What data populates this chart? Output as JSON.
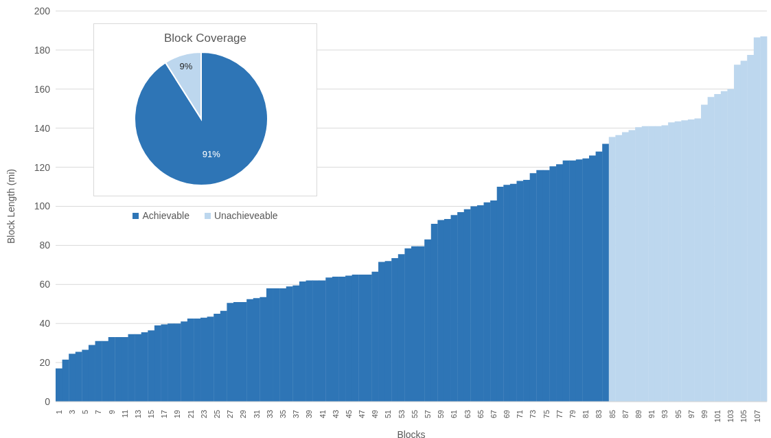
{
  "chart_data": [
    {
      "type": "bar",
      "xlabel": "Blocks",
      "ylabel": "Block Length (mi)",
      "categories": [
        "1",
        null,
        "3",
        null,
        "5",
        null,
        "7",
        null,
        "9",
        null,
        "11",
        null,
        "13",
        null,
        "15",
        null,
        "17",
        null,
        "19",
        null,
        "21",
        null,
        "23",
        null,
        "25",
        null,
        "27",
        null,
        "29",
        null,
        "31",
        null,
        "33",
        null,
        "35",
        null,
        "37",
        null,
        "39",
        null,
        "41",
        null,
        "43",
        null,
        "45",
        null,
        "47",
        null,
        "49",
        null,
        "51",
        null,
        "53",
        null,
        "55",
        null,
        "57",
        null,
        "59",
        null,
        "61",
        null,
        "63",
        null,
        "65",
        null,
        "67",
        null,
        "69",
        null,
        "71",
        null,
        "73",
        null,
        "75",
        null,
        "77",
        null,
        "79",
        null,
        "81",
        null,
        "83",
        null,
        "85",
        null,
        "87",
        null,
        "89",
        null,
        "91",
        null,
        "93",
        null,
        "95",
        null,
        "97",
        null,
        "99",
        null,
        "101",
        null,
        "103",
        null,
        "105",
        null,
        "107",
        null
      ],
      "values": [
        17,
        21.5,
        24.5,
        25.5,
        26.5,
        29,
        31,
        31,
        33,
        33,
        33,
        34.5,
        34.5,
        35.5,
        36.5,
        39,
        39.5,
        40,
        40,
        41,
        42.5,
        42.5,
        43,
        43.5,
        45,
        46.5,
        50.5,
        51,
        51,
        52.5,
        53,
        53.5,
        58,
        58,
        58,
        59,
        59.5,
        61.5,
        62,
        62,
        62,
        63.5,
        64,
        64,
        64.5,
        65,
        65,
        65,
        66.5,
        71.5,
        72,
        73.5,
        75.5,
        78.5,
        79.5,
        79.5,
        83,
        91,
        93,
        93.5,
        95.5,
        97,
        98.5,
        100,
        100.5,
        102,
        103,
        110,
        111,
        111.5,
        113,
        113.5,
        117,
        118.5,
        118.5,
        120.5,
        121.5,
        123.5,
        123.5,
        124,
        124.5,
        126,
        128,
        132,
        135.5,
        136.5,
        138,
        139,
        140.5,
        141,
        141,
        141,
        141.5,
        143,
        143.5,
        144,
        144.5,
        145,
        152,
        156,
        157.5,
        159,
        160,
        172.5,
        174.5,
        177.5,
        186.5,
        187
      ],
      "colors": [
        "#2e75b6",
        "#2e75b6",
        "#2e75b6",
        "#2e75b6",
        "#2e75b6",
        "#2e75b6",
        "#2e75b6",
        "#2e75b6",
        "#2e75b6",
        "#2e75b6",
        "#2e75b6",
        "#2e75b6",
        "#2e75b6",
        "#2e75b6",
        "#2e75b6",
        "#2e75b6",
        "#2e75b6",
        "#2e75b6",
        "#2e75b6",
        "#2e75b6",
        "#2e75b6",
        "#2e75b6",
        "#2e75b6",
        "#2e75b6",
        "#2e75b6",
        "#2e75b6",
        "#2e75b6",
        "#2e75b6",
        "#2e75b6",
        "#2e75b6",
        "#2e75b6",
        "#2e75b6",
        "#2e75b6",
        "#2e75b6",
        "#2e75b6",
        "#2e75b6",
        "#2e75b6",
        "#2e75b6",
        "#2e75b6",
        "#2e75b6",
        "#2e75b6",
        "#2e75b6",
        "#2e75b6",
        "#2e75b6",
        "#2e75b6",
        "#2e75b6",
        "#2e75b6",
        "#2e75b6",
        "#2e75b6",
        "#2e75b6",
        "#2e75b6",
        "#2e75b6",
        "#2e75b6",
        "#2e75b6",
        "#2e75b6",
        "#2e75b6",
        "#2e75b6",
        "#2e75b6",
        "#2e75b6",
        "#2e75b6",
        "#2e75b6",
        "#2e75b6",
        "#2e75b6",
        "#2e75b6",
        "#2e75b6",
        "#2e75b6",
        "#2e75b6",
        "#2e75b6",
        "#2e75b6",
        "#2e75b6",
        "#2e75b6",
        "#2e75b6",
        "#2e75b6",
        "#2e75b6",
        "#2e75b6",
        "#2e75b6",
        "#2e75b6",
        "#2e75b6",
        "#2e75b6",
        "#2e75b6",
        "#2e75b6",
        "#2e75b6",
        "#2e75b6",
        "#2e75b6",
        "#bdd7ee",
        "#bdd7ee",
        "#bdd7ee",
        "#bdd7ee",
        "#bdd7ee",
        "#bdd7ee",
        "#bdd7ee",
        "#bdd7ee",
        "#bdd7ee",
        "#bdd7ee",
        "#bdd7ee",
        "#bdd7ee",
        "#bdd7ee",
        "#bdd7ee",
        "#bdd7ee",
        "#bdd7ee",
        "#bdd7ee",
        "#bdd7ee",
        "#bdd7ee",
        "#bdd7ee",
        "#bdd7ee",
        "#bdd7ee",
        "#bdd7ee",
        "#bdd7ee"
      ],
      "ylim": [
        0,
        200
      ],
      "yticks": [
        0,
        20,
        40,
        60,
        80,
        100,
        120,
        140,
        160,
        180,
        200
      ],
      "grid": "y"
    },
    {
      "type": "pie",
      "title": "Block Coverage",
      "categories": [
        "Achievable",
        "Unachieveable"
      ],
      "values": [
        91,
        9
      ],
      "colors": [
        "#2e75b6",
        "#bdd7ee"
      ],
      "value_labels": [
        "91%",
        "9%"
      ],
      "legend": "bottom"
    }
  ]
}
